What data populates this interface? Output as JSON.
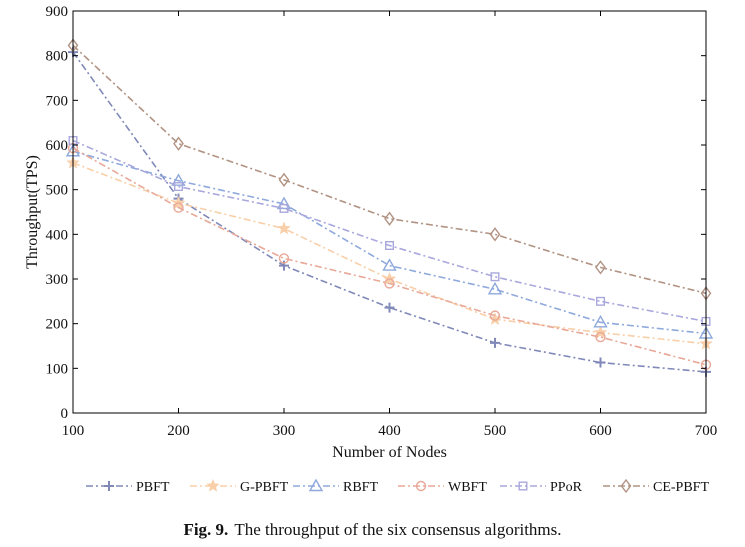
{
  "chart_data": {
    "type": "line",
    "title": "",
    "xlabel": "Number of Nodes",
    "ylabel": "Throughput(TPS)",
    "x": [
      100,
      200,
      300,
      400,
      500,
      600,
      700
    ],
    "xlim": [
      100,
      700
    ],
    "ylim": [
      0,
      900
    ],
    "xticks": [
      "100",
      "200",
      "300",
      "400",
      "500",
      "600",
      "700"
    ],
    "yticks": [
      "0",
      "100",
      "200",
      "300",
      "400",
      "500",
      "600",
      "700",
      "800",
      "900"
    ],
    "legend_position": "bottom",
    "series": [
      {
        "name": "PBFT",
        "marker": "plus",
        "color": "#8089b8",
        "values": [
          808,
          480,
          330,
          236,
          157,
          113,
          92
        ]
      },
      {
        "name": "G-PBFT",
        "marker": "star",
        "color": "#f8cfa8",
        "values": [
          560,
          470,
          413,
          300,
          210,
          180,
          155
        ]
      },
      {
        "name": "RBFT",
        "marker": "triangle",
        "color": "#8fa9dc",
        "values": [
          586,
          520,
          468,
          330,
          277,
          203,
          178
        ]
      },
      {
        "name": "WBFT",
        "marker": "circle",
        "color": "#e8a898",
        "values": [
          593,
          460,
          346,
          290,
          218,
          170,
          108
        ]
      },
      {
        "name": "PPoR",
        "marker": "square",
        "color": "#a9a8dc",
        "values": [
          610,
          507,
          458,
          375,
          305,
          250,
          205
        ]
      },
      {
        "name": "CE-PBFT",
        "marker": "diamond",
        "color": "#b19383",
        "values": [
          823,
          603,
          522,
          435,
          400,
          326,
          268
        ]
      }
    ]
  },
  "caption": {
    "label": "Fig. 9.",
    "text": "The throughput of the six consensus algorithms."
  }
}
